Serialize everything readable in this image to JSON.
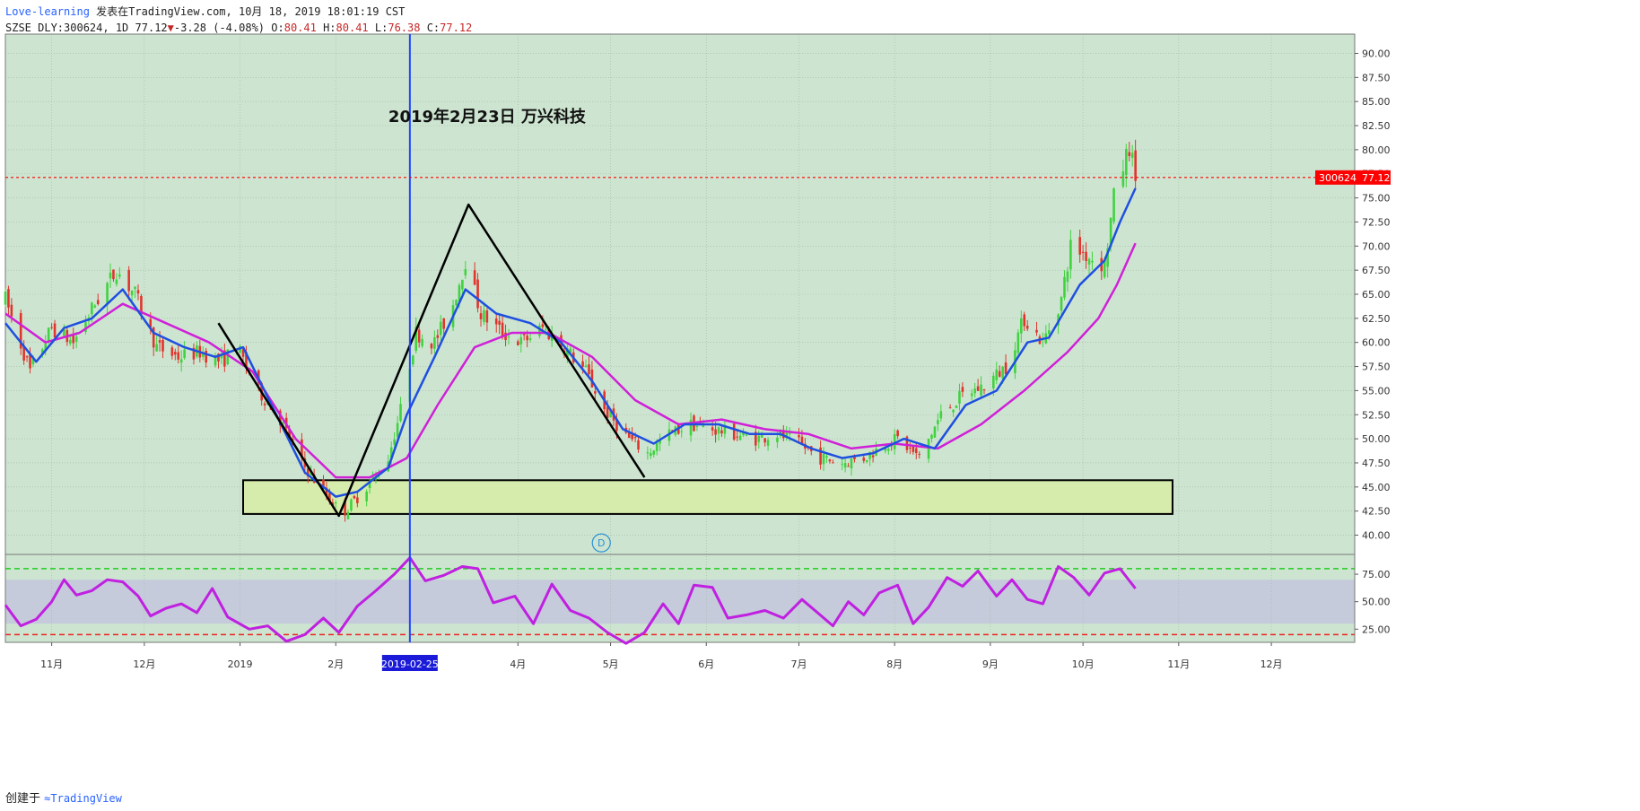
{
  "header": {
    "author": "Love-learning",
    "published": "发表在TradingView.com, 10月 18, 2019 18:01:19 CST",
    "symbol": "SZSE_DLY:300624, 1D",
    "last": "77.12",
    "change": "-3.28 (-4.08%)",
    "o_label": "O:",
    "o": "80.41",
    "h_label": "H:",
    "h": "80.41",
    "l_label": "L:",
    "l": "76.38",
    "c_label": "C:",
    "c": "77.12"
  },
  "footer": {
    "created": "创建于",
    "brand": "TradingView"
  },
  "colors": {
    "background": "#cde5d0",
    "rsi_band": "#c5cbdb",
    "up": "#40d240",
    "down": "#e0342d",
    "ma_short": "#1f4fe0",
    "ma_long": "#d020d8",
    "rsi": "#c020e0",
    "last_price": "#ff0000",
    "marker_line": "#2244ff"
  },
  "chart_data": [
    {
      "type": "candlestick",
      "title": "2019年2月23日 万兴科技",
      "symbol": "300624",
      "last_price": 77.12,
      "ylim": [
        38.0,
        92.0
      ],
      "yticks": [
        40,
        42.5,
        45,
        47.5,
        50,
        52.5,
        55,
        57.5,
        60,
        62.5,
        65,
        67.5,
        70,
        72.5,
        75,
        77.5,
        80,
        82.5,
        85,
        87.5,
        90
      ],
      "ytick_labels": [
        "40.00",
        "42.50",
        "45.00",
        "47.50",
        "50.00",
        "52.50",
        "55.00",
        "57.50",
        "60.00",
        "62.50",
        "65.00",
        "67.50",
        "70.00",
        "72.50",
        "75.00",
        "77.50",
        "80.00",
        "82.50",
        "85.00",
        "87.50",
        "90.00"
      ],
      "xaxis": {
        "range": [
          "2018-10-17",
          "2019-12-28"
        ],
        "ticks": [
          {
            "date": "2018-11-01",
            "label": "11月"
          },
          {
            "date": "2018-12-01",
            "label": "12月"
          },
          {
            "date": "2019-01-01",
            "label": "2019"
          },
          {
            "date": "2019-02-01",
            "label": "2月"
          },
          {
            "date": "2019-04-01",
            "label": "4月"
          },
          {
            "date": "2019-05-01",
            "label": "5月"
          },
          {
            "date": "2019-06-01",
            "label": "6月"
          },
          {
            "date": "2019-07-01",
            "label": "7月"
          },
          {
            "date": "2019-08-01",
            "label": "8月"
          },
          {
            "date": "2019-09-01",
            "label": "9月"
          },
          {
            "date": "2019-10-01",
            "label": "10月"
          },
          {
            "date": "2019-11-01",
            "label": "11月"
          },
          {
            "date": "2019-12-01",
            "label": "12月"
          }
        ],
        "highlight": {
          "date": "2019-02-25",
          "label": "2019-02-25"
        }
      },
      "price_path": [
        [
          "2018-10-17",
          64.5
        ],
        [
          "2018-10-25",
          57.0
        ],
        [
          "2018-11-01",
          61.5
        ],
        [
          "2018-11-08",
          60.0
        ],
        [
          "2018-11-15",
          64.0
        ],
        [
          "2018-11-22",
          67.5
        ],
        [
          "2018-11-28",
          65.0
        ],
        [
          "2018-12-05",
          59.5
        ],
        [
          "2018-12-12",
          58.5
        ],
        [
          "2018-12-19",
          59.0
        ],
        [
          "2018-12-26",
          58.0
        ],
        [
          "2018-12-31",
          59.5
        ],
        [
          "2019-01-07",
          55.0
        ],
        [
          "2019-01-14",
          52.0
        ],
        [
          "2019-01-21",
          47.5
        ],
        [
          "2019-01-28",
          44.5
        ],
        [
          "2019-02-01",
          43.0
        ],
        [
          "2019-02-04",
          42.5
        ],
        [
          "2019-02-11",
          45.0
        ],
        [
          "2019-02-18",
          48.0
        ],
        [
          "2019-02-22",
          53.0
        ],
        [
          "2019-02-27",
          61.0
        ],
        [
          "2019-03-05",
          60.0
        ],
        [
          "2019-03-11",
          64.0
        ],
        [
          "2019-03-15",
          68.5
        ],
        [
          "2019-03-20",
          63.0
        ],
        [
          "2019-03-27",
          61.0
        ],
        [
          "2019-04-02",
          60.0
        ],
        [
          "2019-04-09",
          61.5
        ],
        [
          "2019-04-16",
          59.5
        ],
        [
          "2019-04-23",
          57.0
        ],
        [
          "2019-04-29",
          53.0
        ],
        [
          "2019-05-07",
          50.0
        ],
        [
          "2019-05-13",
          48.5
        ],
        [
          "2019-05-20",
          50.5
        ],
        [
          "2019-05-27",
          51.5
        ],
        [
          "2019-06-03",
          51.0
        ],
        [
          "2019-06-10",
          50.5
        ],
        [
          "2019-06-17",
          50.0
        ],
        [
          "2019-06-24",
          50.5
        ],
        [
          "2019-07-01",
          49.5
        ],
        [
          "2019-07-08",
          48.0
        ],
        [
          "2019-07-15",
          47.5
        ],
        [
          "2019-07-22",
          48.0
        ],
        [
          "2019-07-29",
          49.5
        ],
        [
          "2019-08-02",
          50.0
        ],
        [
          "2019-08-09",
          48.0
        ],
        [
          "2019-08-16",
          52.5
        ],
        [
          "2019-08-23",
          54.5
        ],
        [
          "2019-08-30",
          55.5
        ],
        [
          "2019-09-06",
          57.5
        ],
        [
          "2019-09-12",
          62.5
        ],
        [
          "2019-09-18",
          60.0
        ],
        [
          "2019-09-24",
          64.5
        ],
        [
          "2019-09-27",
          70.0
        ],
        [
          "2019-10-08",
          68.0
        ],
        [
          "2019-10-11",
          75.0
        ],
        [
          "2019-10-16",
          80.4
        ],
        [
          "2019-10-18",
          77.12
        ]
      ],
      "ma_short": [
        [
          "2018-10-17",
          62.0
        ],
        [
          "2018-10-27",
          58.0
        ],
        [
          "2018-11-05",
          61.5
        ],
        [
          "2018-11-14",
          62.5
        ],
        [
          "2018-11-24",
          65.5
        ],
        [
          "2018-12-04",
          61.0
        ],
        [
          "2018-12-14",
          59.5
        ],
        [
          "2018-12-24",
          58.5
        ],
        [
          "2019-01-02",
          59.5
        ],
        [
          "2019-01-12",
          53.0
        ],
        [
          "2019-01-22",
          46.5
        ],
        [
          "2019-02-01",
          44.0
        ],
        [
          "2019-02-08",
          44.5
        ],
        [
          "2019-02-18",
          47.0
        ],
        [
          "2019-02-24",
          52.5
        ],
        [
          "2019-03-05",
          58.5
        ],
        [
          "2019-03-15",
          65.5
        ],
        [
          "2019-03-25",
          63.0
        ],
        [
          "2019-04-05",
          62.0
        ],
        [
          "2019-04-15",
          60.0
        ],
        [
          "2019-04-25",
          56.0
        ],
        [
          "2019-05-05",
          51.0
        ],
        [
          "2019-05-15",
          49.5
        ],
        [
          "2019-05-25",
          51.5
        ],
        [
          "2019-06-05",
          51.5
        ],
        [
          "2019-06-15",
          50.5
        ],
        [
          "2019-06-25",
          50.5
        ],
        [
          "2019-07-05",
          49.0
        ],
        [
          "2019-07-15",
          48.0
        ],
        [
          "2019-07-25",
          48.5
        ],
        [
          "2019-08-04",
          50.0
        ],
        [
          "2019-08-14",
          49.0
        ],
        [
          "2019-08-24",
          53.5
        ],
        [
          "2019-09-03",
          55.0
        ],
        [
          "2019-09-13",
          60.0
        ],
        [
          "2019-09-20",
          60.5
        ],
        [
          "2019-09-30",
          66.0
        ],
        [
          "2019-10-08",
          68.5
        ],
        [
          "2019-10-13",
          72.5
        ],
        [
          "2019-10-18",
          76.0
        ]
      ],
      "ma_long": [
        [
          "2018-10-17",
          63.0
        ],
        [
          "2018-10-30",
          60.0
        ],
        [
          "2018-11-10",
          61.0
        ],
        [
          "2018-11-24",
          64.0
        ],
        [
          "2018-12-08",
          62.0
        ],
        [
          "2018-12-22",
          60.0
        ],
        [
          "2019-01-05",
          57.0
        ],
        [
          "2019-01-19",
          50.0
        ],
        [
          "2019-02-01",
          46.0
        ],
        [
          "2019-02-12",
          46.0
        ],
        [
          "2019-02-24",
          48.0
        ],
        [
          "2019-03-06",
          53.5
        ],
        [
          "2019-03-18",
          59.5
        ],
        [
          "2019-03-30",
          61.0
        ],
        [
          "2019-04-11",
          61.0
        ],
        [
          "2019-04-25",
          58.5
        ],
        [
          "2019-05-09",
          54.0
        ],
        [
          "2019-05-23",
          51.5
        ],
        [
          "2019-06-06",
          52.0
        ],
        [
          "2019-06-20",
          51.0
        ],
        [
          "2019-07-04",
          50.5
        ],
        [
          "2019-07-18",
          49.0
        ],
        [
          "2019-08-01",
          49.5
        ],
        [
          "2019-08-15",
          49.0
        ],
        [
          "2019-08-29",
          51.5
        ],
        [
          "2019-09-12",
          55.0
        ],
        [
          "2019-09-26",
          59.0
        ],
        [
          "2019-10-06",
          62.5
        ],
        [
          "2019-10-12",
          66.0
        ],
        [
          "2019-10-18",
          70.3
        ]
      ],
      "drawn_lines": [
        [
          [
            "2018-12-25",
            62.0
          ],
          [
            "2019-02-02",
            42.0
          ],
          [
            "2019-03-16",
            74.3
          ],
          [
            "2019-05-12",
            46.0
          ]
        ]
      ],
      "support_box": {
        "from": "2019-01-02",
        "to": "2019-10-30",
        "low": 42.2,
        "high": 45.7
      },
      "event_marker": {
        "date": "2019-04-28",
        "price": 39.2,
        "label": "D"
      }
    },
    {
      "type": "line",
      "indicator": "RSI",
      "ylim": [
        13,
        93
      ],
      "yticks": [
        25,
        50,
        75
      ],
      "ytick_labels": [
        "25.00",
        "50.00",
        "75.00"
      ],
      "band": [
        30,
        70
      ],
      "upper_line": 80,
      "lower_line": 20,
      "values": [
        [
          "2018-10-17",
          47
        ],
        [
          "2018-10-22",
          28
        ],
        [
          "2018-10-27",
          34
        ],
        [
          "2018-11-01",
          50
        ],
        [
          "2018-11-05",
          70
        ],
        [
          "2018-11-09",
          56
        ],
        [
          "2018-11-14",
          60
        ],
        [
          "2018-11-19",
          70
        ],
        [
          "2018-11-24",
          68
        ],
        [
          "2018-11-29",
          55
        ],
        [
          "2018-12-03",
          37
        ],
        [
          "2018-12-08",
          44
        ],
        [
          "2018-12-13",
          48
        ],
        [
          "2018-12-18",
          40
        ],
        [
          "2018-12-23",
          62
        ],
        [
          "2018-12-28",
          36
        ],
        [
          "2019-01-04",
          25
        ],
        [
          "2019-01-10",
          28
        ],
        [
          "2019-01-16",
          14
        ],
        [
          "2019-01-22",
          20
        ],
        [
          "2019-01-28",
          35
        ],
        [
          "2019-02-02",
          22
        ],
        [
          "2019-02-08",
          46
        ],
        [
          "2019-02-14",
          60
        ],
        [
          "2019-02-20",
          75
        ],
        [
          "2019-02-25",
          90
        ],
        [
          "2019-03-02",
          69
        ],
        [
          "2019-03-08",
          74
        ],
        [
          "2019-03-14",
          82
        ],
        [
          "2019-03-19",
          80
        ],
        [
          "2019-03-24",
          49
        ],
        [
          "2019-03-31",
          55
        ],
        [
          "2019-04-06",
          30
        ],
        [
          "2019-04-12",
          66
        ],
        [
          "2019-04-18",
          42
        ],
        [
          "2019-04-24",
          35
        ],
        [
          "2019-04-30",
          22
        ],
        [
          "2019-05-06",
          12
        ],
        [
          "2019-05-12",
          22
        ],
        [
          "2019-05-18",
          48
        ],
        [
          "2019-05-23",
          30
        ],
        [
          "2019-05-28",
          65
        ],
        [
          "2019-06-03",
          63
        ],
        [
          "2019-06-08",
          35
        ],
        [
          "2019-06-14",
          38
        ],
        [
          "2019-06-20",
          42
        ],
        [
          "2019-06-26",
          35
        ],
        [
          "2019-07-02",
          52
        ],
        [
          "2019-07-07",
          40
        ],
        [
          "2019-07-12",
          28
        ],
        [
          "2019-07-17",
          50
        ],
        [
          "2019-07-22",
          38
        ],
        [
          "2019-07-27",
          58
        ],
        [
          "2019-08-02",
          65
        ],
        [
          "2019-08-07",
          30
        ],
        [
          "2019-08-12",
          45
        ],
        [
          "2019-08-18",
          72
        ],
        [
          "2019-08-23",
          64
        ],
        [
          "2019-08-28",
          78
        ],
        [
          "2019-09-03",
          55
        ],
        [
          "2019-09-08",
          70
        ],
        [
          "2019-09-13",
          52
        ],
        [
          "2019-09-18",
          48
        ],
        [
          "2019-09-23",
          82
        ],
        [
          "2019-09-28",
          72
        ],
        [
          "2019-10-03",
          56
        ],
        [
          "2019-10-08",
          76
        ],
        [
          "2019-10-13",
          80
        ],
        [
          "2019-10-18",
          62
        ]
      ]
    }
  ]
}
